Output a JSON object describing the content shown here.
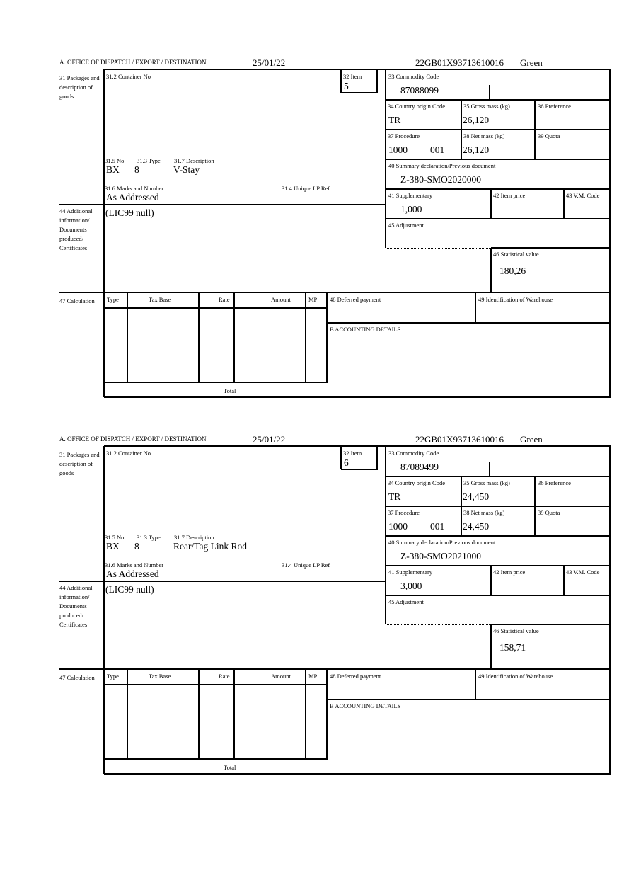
{
  "labels": {
    "office": "A.  OFFICE OF DISPATCH / EXPORT / DESTINATION",
    "packages": "31 Packages and description of goods",
    "container_no": "31.2 Container No",
    "item": "32 Item",
    "no": "31.5 No",
    "type": "31.3 Type",
    "description": "31.7 Description",
    "marks": "31.6 Marks and Number",
    "unique_lp": "31.4 Unique LP Ref",
    "additional": "44 Additional information/ Documents produced/ Certificates",
    "commodity": "33 Commodity Code",
    "country_origin": "34 Country origin Code",
    "gross_mass": "35 Gross mass (kg)",
    "preference": "36 Preference",
    "procedure": "37 Procedure",
    "net_mass": "38 Net mass (kg)",
    "quota": "39 Quota",
    "summary_decl": "40 Summary declaration/Previous document",
    "supplementary": "41 Supplementary",
    "item_price": "42 Item price",
    "vm_code": "43 V.M. Code",
    "adjustment": "45 Adjustment",
    "statistical": "46 Statistical value",
    "calculation": "47 Calculation",
    "calc_type": "Type",
    "calc_tax_base": "Tax Base",
    "calc_rate": "Rate",
    "calc_amount": "Amount",
    "calc_mp": "MP",
    "total": "Total",
    "deferred": "48 Deferred payment",
    "warehouse": "49 Identification of Warehouse",
    "accounting": "B ACCOUNTING DETAILS"
  },
  "blocks": [
    {
      "date": "25/01/22",
      "reference": "22GB01X93713610016",
      "route": "Green",
      "item": "5",
      "pkg_no": "BX",
      "pkg_type": "8",
      "description": "V-Stay",
      "marks": "As Addressed",
      "additional_info": "(LIC99 null)",
      "commodity_code": "87088099",
      "country_origin": "TR",
      "gross_mass": "26,120",
      "procedure": "1000",
      "procedure_extra": "001",
      "net_mass": "26,120",
      "previous_document": "Z-380-SMO2020000",
      "supplementary": "1,000",
      "statistical_value": "180,26"
    },
    {
      "date": "25/01/22",
      "reference": "22GB01X93713610016",
      "route": "Green",
      "item": "6",
      "pkg_no": "BX",
      "pkg_type": "8",
      "description": "Rear/Tag Link Rod",
      "marks": "As Addressed",
      "additional_info": "(LIC99 null)",
      "commodity_code": "87089499",
      "country_origin": "TR",
      "gross_mass": "24,450",
      "procedure": "1000",
      "procedure_extra": "001",
      "net_mass": "24,450",
      "previous_document": "Z-380-SMO2021000",
      "supplementary": "3,000",
      "statistical_value": "158,71"
    }
  ]
}
